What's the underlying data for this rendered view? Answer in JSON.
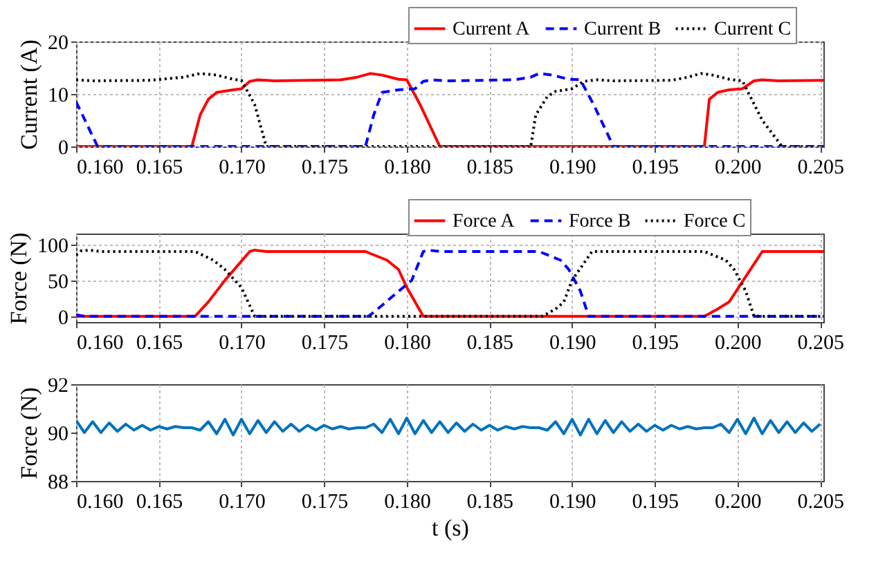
{
  "chart_data": [
    {
      "type": "line",
      "ylabel": "Current (A)",
      "xlim": [
        0.16,
        0.2052
      ],
      "ylim": [
        0,
        20
      ],
      "yticks": [
        0,
        10,
        20
      ],
      "xticks": [
        {
          "value": 0.16,
          "label": "0.160"
        },
        {
          "value": 0.165,
          "label": "0.165"
        },
        {
          "value": 0.17,
          "label": "0.170"
        },
        {
          "value": 0.175,
          "label": "0.175"
        },
        {
          "value": 0.18,
          "label": "0.180"
        },
        {
          "value": 0.185,
          "label": "0.185"
        },
        {
          "value": 0.19,
          "label": "0.190"
        },
        {
          "value": 0.195,
          "label": "0.195"
        },
        {
          "value": 0.2,
          "label": "0.200"
        },
        {
          "value": 0.205,
          "label": "0.205"
        }
      ],
      "grid": true,
      "legend": "top right",
      "series": [
        {
          "name": "Current A",
          "color": "#ff0000",
          "line_style": "solid",
          "x": [
            0.16,
            0.167,
            0.1675,
            0.168,
            0.1685,
            0.1695,
            0.17,
            0.1705,
            0.171,
            0.172,
            0.176,
            0.177,
            0.1778,
            0.1785,
            0.1795,
            0.18,
            0.1808,
            0.182,
            0.198,
            0.1983,
            0.1988,
            0.1995,
            0.2003,
            0.201,
            0.2015,
            0.2025,
            0.2052
          ],
          "values": [
            0,
            0,
            6,
            9,
            10.3,
            10.8,
            11,
            12.4,
            12.7,
            12.5,
            12.7,
            13.2,
            13.9,
            13.6,
            12.8,
            12.7,
            8,
            0,
            0,
            9,
            10.3,
            10.8,
            11,
            12.5,
            12.7,
            12.5,
            12.6
          ]
        },
        {
          "name": "Current B",
          "color": "#0000ff",
          "line_style": "dashed",
          "x": [
            0.16,
            0.1613,
            0.1775,
            0.178,
            0.1785,
            0.1795,
            0.1805,
            0.181,
            0.1815,
            0.1825,
            0.1865,
            0.1875,
            0.188,
            0.1888,
            0.1898,
            0.1905,
            0.1913,
            0.1925,
            0.2052
          ],
          "values": [
            8.5,
            0,
            0,
            6,
            10.3,
            10.8,
            11,
            12.4,
            12.7,
            12.5,
            12.7,
            13.2,
            13.9,
            13.6,
            12.8,
            12.7,
            8,
            0,
            0
          ]
        },
        {
          "name": "Current C",
          "color": "#000000",
          "line_style": "dotted",
          "x": [
            0.16,
            0.161,
            0.1645,
            0.1665,
            0.1675,
            0.1685,
            0.1695,
            0.17,
            0.1708,
            0.1715,
            0.1875,
            0.1878,
            0.1885,
            0.189,
            0.19,
            0.1907,
            0.1915,
            0.1925,
            0.196,
            0.197,
            0.1978,
            0.1985,
            0.1995,
            0.2003,
            0.2015,
            0.2027,
            0.2052
          ],
          "values": [
            12.7,
            12.5,
            12.6,
            13.2,
            13.9,
            13.6,
            12.8,
            12.6,
            8,
            0,
            0,
            6,
            9.5,
            10.5,
            11,
            12.4,
            12.7,
            12.5,
            12.6,
            13.2,
            13.9,
            13.6,
            12.8,
            12.5,
            5,
            0,
            0
          ]
        }
      ]
    },
    {
      "type": "line",
      "ylabel": "Force (N)",
      "xlim": [
        0.16,
        0.2052
      ],
      "ylim": [
        -8,
        115
      ],
      "yticks": [
        0,
        50,
        100
      ],
      "xticks": [
        {
          "value": 0.16,
          "label": "0.160"
        },
        {
          "value": 0.165,
          "label": "0.165"
        },
        {
          "value": 0.17,
          "label": "0.170"
        },
        {
          "value": 0.175,
          "label": "0.175"
        },
        {
          "value": 0.18,
          "label": "0.180"
        },
        {
          "value": 0.185,
          "label": "0.185"
        },
        {
          "value": 0.19,
          "label": "0.190"
        },
        {
          "value": 0.195,
          "label": "0.195"
        },
        {
          "value": 0.2,
          "label": "0.200"
        },
        {
          "value": 0.205,
          "label": "0.205"
        }
      ],
      "grid": true,
      "legend": "top right",
      "series": [
        {
          "name": "Force A",
          "color": "#ff0000",
          "line_style": "solid",
          "x": [
            0.16,
            0.1672,
            0.168,
            0.169,
            0.1705,
            0.1708,
            0.1715,
            0.1775,
            0.1788,
            0.1795,
            0.18,
            0.181,
            0.198,
            0.1988,
            0.1995,
            0.2005,
            0.2015,
            0.2052
          ],
          "values": [
            0,
            0,
            20,
            50,
            90,
            92,
            90,
            90,
            78,
            65,
            40,
            0,
            0,
            10,
            20,
            55,
            90,
            90
          ]
        },
        {
          "name": "Force B",
          "color": "#0000ff",
          "line_style": "dashed",
          "x": [
            0.16,
            0.1605,
            0.1777,
            0.1785,
            0.179,
            0.1803,
            0.181,
            0.1813,
            0.182,
            0.188,
            0.1893,
            0.1898,
            0.1905,
            0.191,
            0.2052
          ],
          "values": [
            2,
            0,
            0,
            15,
            25,
            50,
            90,
            92,
            90,
            90,
            78,
            65,
            35,
            0,
            0
          ]
        },
        {
          "name": "Force C",
          "color": "#000000",
          "line_style": "dotted",
          "x": [
            0.16,
            0.1603,
            0.1608,
            0.1615,
            0.1672,
            0.1683,
            0.169,
            0.17,
            0.1708,
            0.1882,
            0.189,
            0.1895,
            0.19,
            0.1912,
            0.1915,
            0.198,
            0.1993,
            0.1998,
            0.2005,
            0.201,
            0.2052
          ],
          "values": [
            85,
            91,
            92,
            90,
            90,
            78,
            65,
            40,
            0,
            0,
            10,
            20,
            50,
            90,
            90,
            90,
            78,
            65,
            35,
            0,
            0
          ]
        }
      ]
    },
    {
      "type": "line",
      "ylabel": "Force (N)",
      "xlabel": "t (s)",
      "xlim": [
        0.16,
        0.2052
      ],
      "ylim": [
        88,
        92
      ],
      "yticks": [
        88,
        90,
        92
      ],
      "xticks": [
        {
          "value": 0.16,
          "label": "0.160"
        },
        {
          "value": 0.165,
          "label": "0.165"
        },
        {
          "value": 0.17,
          "label": "0.170"
        },
        {
          "value": 0.175,
          "label": "0.175"
        },
        {
          "value": 0.18,
          "label": "0.180"
        },
        {
          "value": 0.185,
          "label": "0.185"
        },
        {
          "value": 0.19,
          "label": "0.190"
        },
        {
          "value": 0.195,
          "label": "0.195"
        },
        {
          "value": 0.2,
          "label": "0.200"
        },
        {
          "value": 0.205,
          "label": "0.205"
        }
      ],
      "grid": "x",
      "series": [
        {
          "color": "#0072bd",
          "line_style": "solid",
          "x": [
            0.16,
            0.1605,
            0.161,
            0.1615,
            0.162,
            0.1625,
            0.163,
            0.1635,
            0.164,
            0.1645,
            0.165,
            0.1655,
            0.166,
            0.1665,
            0.167,
            0.1675,
            0.168,
            0.1685,
            0.169,
            0.1695,
            0.17,
            0.1705,
            0.171,
            0.1715,
            0.172,
            0.1725,
            0.173,
            0.1735,
            0.174,
            0.1745,
            0.175,
            0.1755,
            0.176,
            0.1765,
            0.177,
            0.1775,
            0.178,
            0.1785,
            0.179,
            0.1795,
            0.18,
            0.1805,
            0.181,
            0.1815,
            0.182,
            0.1825,
            0.183,
            0.1835,
            0.184,
            0.1845,
            0.185,
            0.1855,
            0.186,
            0.1865,
            0.187,
            0.1875,
            0.188,
            0.1885,
            0.189,
            0.1895,
            0.19,
            0.1905,
            0.191,
            0.1915,
            0.192,
            0.1925,
            0.193,
            0.1935,
            0.194,
            0.1945,
            0.195,
            0.1955,
            0.196,
            0.1965,
            0.197,
            0.1975,
            0.198,
            0.1985,
            0.199,
            0.1995,
            0.2,
            0.2005,
            0.201,
            0.2015,
            0.202,
            0.2025,
            0.203,
            0.2035,
            0.204,
            0.2045,
            0.205
          ],
          "values": [
            90.5,
            90.0,
            90.45,
            90.0,
            90.4,
            90.05,
            90.35,
            90.1,
            90.3,
            90.1,
            90.25,
            90.15,
            90.25,
            90.2,
            90.2,
            90.1,
            90.45,
            89.95,
            90.55,
            89.9,
            90.55,
            89.95,
            90.5,
            90.0,
            90.45,
            90.05,
            90.35,
            90.05,
            90.3,
            90.1,
            90.3,
            90.15,
            90.25,
            90.15,
            90.2,
            90.2,
            90.35,
            90.0,
            90.55,
            89.95,
            90.6,
            89.95,
            90.5,
            90.0,
            90.45,
            90.0,
            90.4,
            90.05,
            90.35,
            90.1,
            90.3,
            90.1,
            90.25,
            90.15,
            90.25,
            90.2,
            90.2,
            90.1,
            90.45,
            89.95,
            90.55,
            89.9,
            90.55,
            89.95,
            90.5,
            90.0,
            90.45,
            90.05,
            90.35,
            90.05,
            90.3,
            90.1,
            90.3,
            90.15,
            90.25,
            90.15,
            90.2,
            90.2,
            90.35,
            90.0,
            90.55,
            89.95,
            90.6,
            89.95,
            90.5,
            90.0,
            90.45,
            90.0,
            90.4,
            90.05,
            90.35
          ]
        }
      ]
    }
  ]
}
